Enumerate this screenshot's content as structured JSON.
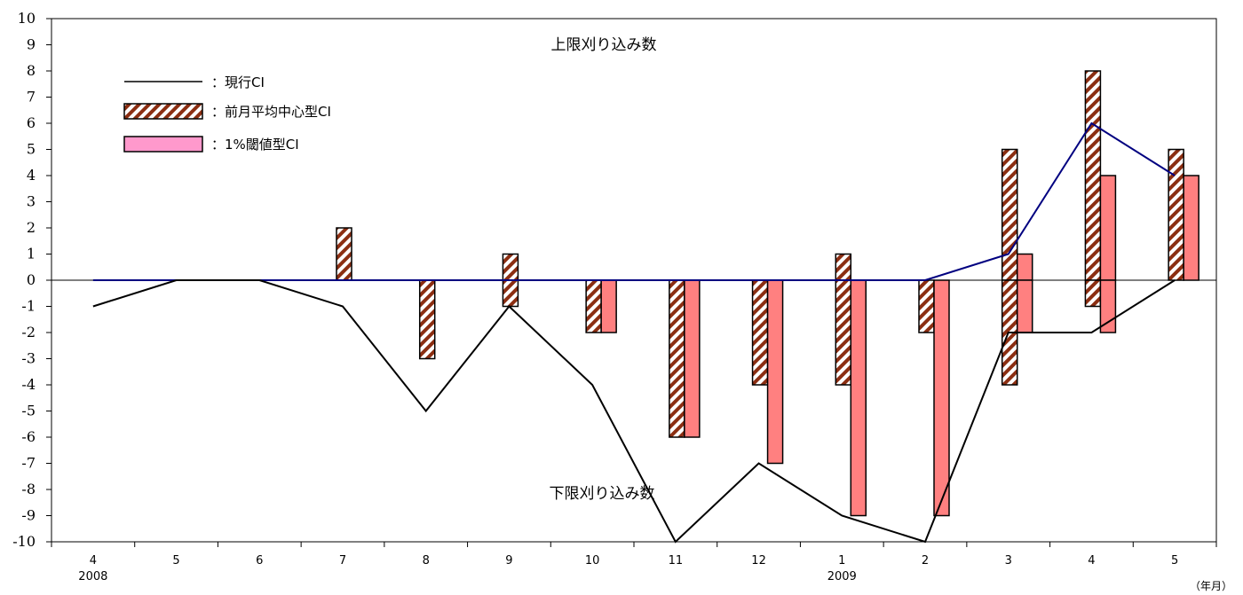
{
  "chart_data": {
    "type": "bar",
    "title": "",
    "xlabel": "",
    "ylabel": "",
    "x_unit_label": "（年月）",
    "ylim": [
      -10,
      10
    ],
    "yticks": [
      10,
      9,
      8,
      7,
      6,
      5,
      4,
      3,
      2,
      1,
      0,
      -1,
      -2,
      -3,
      -4,
      -5,
      -6,
      -7,
      -8,
      -9,
      -10
    ],
    "categories": [
      "4",
      "5",
      "6",
      "7",
      "8",
      "9",
      "10",
      "11",
      "12",
      "1",
      "2",
      "3",
      "4",
      "5"
    ],
    "year_labels": [
      {
        "index": 0,
        "text": "2008"
      },
      {
        "index": 9,
        "text": "2009"
      }
    ],
    "annotations": {
      "upper": "上限刈り込み数",
      "lower": "下限刈り込み数"
    },
    "grid": false,
    "legend_position": "top-left",
    "legend": [
      {
        "symbol": "line",
        "label": "：現行CI"
      },
      {
        "symbol": "hatched-bar",
        "label": "：前月平均中心型CI"
      },
      {
        "symbol": "pink-bar",
        "label": "：1%閾値型CI"
      }
    ],
    "series": [
      {
        "name": "前月平均中心型CI",
        "kind": "bar",
        "subtype": "upper",
        "values": [
          0,
          0,
          0,
          2,
          0,
          1,
          0,
          0,
          0,
          1,
          0,
          5,
          8,
          5
        ]
      },
      {
        "name": "前月平均中心型CI",
        "kind": "bar",
        "subtype": "lower",
        "values": [
          0,
          0,
          0,
          0,
          -3,
          -1,
          -2,
          -6,
          -4,
          -4,
          -2,
          -4,
          -1,
          0
        ]
      },
      {
        "name": "1%閾値型CI",
        "kind": "bar",
        "subtype": "upper",
        "values": [
          0,
          0,
          0,
          0,
          0,
          0,
          0,
          0,
          0,
          0,
          0,
          1,
          4,
          4
        ]
      },
      {
        "name": "1%閾値型CI",
        "kind": "bar",
        "subtype": "lower",
        "values": [
          0,
          0,
          0,
          0,
          0,
          0,
          -2,
          -6,
          -7,
          -9,
          -9,
          -2,
          -2,
          0
        ]
      },
      {
        "name": "現行CI",
        "kind": "line",
        "subtype": "upper",
        "values": [
          0,
          0,
          0,
          0,
          0,
          0,
          0,
          0,
          0,
          0,
          0,
          1,
          6,
          4
        ]
      },
      {
        "name": "現行CI",
        "kind": "line",
        "subtype": "lower",
        "values": [
          -1,
          0,
          0,
          -1,
          -5,
          -1,
          -4,
          -10,
          -7,
          -9,
          -10,
          -2,
          -2,
          0
        ]
      }
    ],
    "colors": {
      "hatch_stripe": "#8b2e12",
      "hatch_bg": "#ffffff",
      "pink_bar": "#ff8080",
      "legend_pink": "#ff99cc",
      "upper_line": "#000080",
      "lower_line": "#000000",
      "axis": "#000000"
    }
  }
}
